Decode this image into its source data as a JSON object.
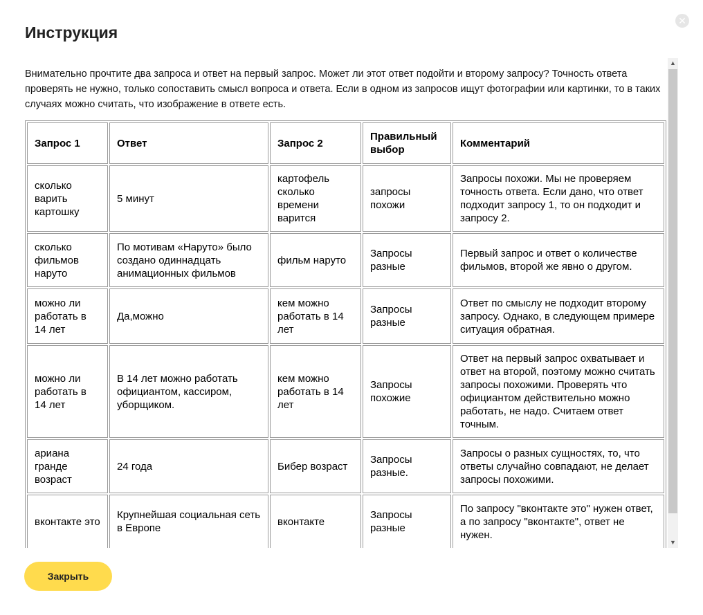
{
  "title": "Инструкция",
  "intro": "Внимательно прочтите два запроса и ответ на первый запрос. Может ли этот ответ подойти и второму запросу? Точность ответа проверять не нужно, только сопоставить смысл вопроса и ответа. Если в одном из запросов ищут фотографии или картинки, то в таких случаях можно считать, что изображение в ответе есть.",
  "table": {
    "headers": [
      "Запрос 1",
      "Ответ",
      "Запрос 2",
      "Правильный выбор",
      "Комментарий"
    ],
    "rows": [
      [
        "сколько варить картошку",
        "5 минут",
        "картофель сколько времени варится",
        "запросы похожи",
        "Запросы похожи. Мы не проверяем точность ответа. Если дано, что ответ подходит запросу 1, то он подходит и запросу 2."
      ],
      [
        "сколько фильмов наруто",
        "По мотивам «Наруто» было создано одиннадцать анимационных фильмов",
        "фильм наруто",
        "Запросы разные",
        "Первый запрос и ответ о количестве фильмов, второй же явно о другом."
      ],
      [
        "можно ли работать в 14 лет",
        "Да,можно",
        "кем можно работать в 14 лет",
        "Запросы разные",
        "Ответ по смыслу не подходит второму запросу. Однако, в следующем примере ситуация обратная."
      ],
      [
        "можно ли работать в 14 лет",
        "В 14 лет можно работать официантом, кассиром, уборщиком.",
        "кем можно работать в 14 лет",
        "Запросы похожие",
        "Ответ на первый запрос охватывает и ответ на второй, поэтому можно считать запросы похожими. Проверять что официантом действительно можно работать, не надо. Считаем ответ точным."
      ],
      [
        "ариана гранде возраст",
        "24 года",
        "Бибер возраст",
        "Запросы разные.",
        "Запросы о разных сущностях, то, что ответы случайно совпадают, не делает запросы похожими."
      ],
      [
        "вконтакте это",
        "Крупнейшая социальная сеть в Европе",
        "вконтакте",
        "Запросы разные",
        "По запросу \"вконтакте это\" нужен ответ, а по запросу \"вконтакте\", ответ не нужен."
      ]
    ]
  },
  "close_button": "Закрыть",
  "colors": {
    "accent": "#ffdb4d"
  }
}
